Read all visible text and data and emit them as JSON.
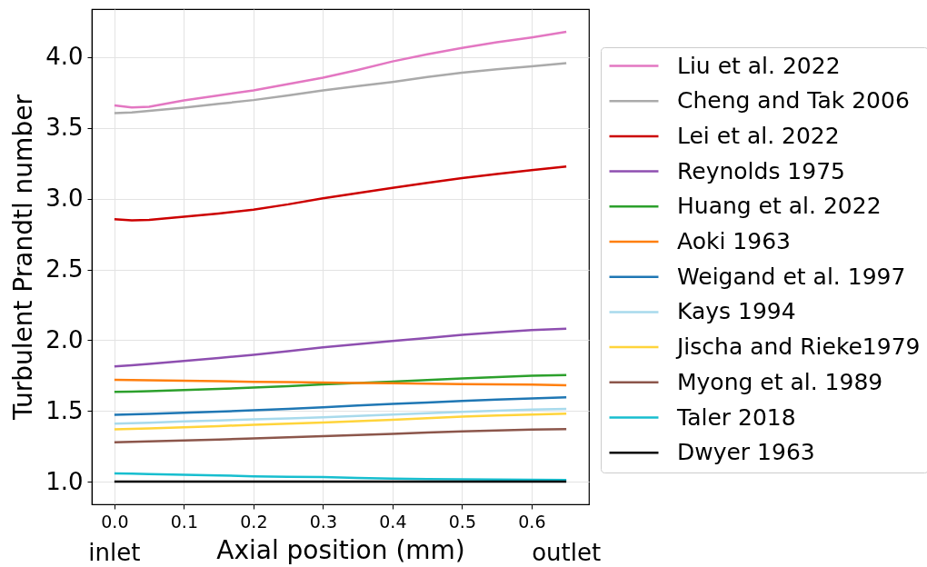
{
  "chart_data": {
    "type": "line",
    "xlabel": "Axial position (mm)",
    "ylabel": "Turbulent Prandtl number",
    "x": [
      0,
      0.025,
      0.05,
      0.1,
      0.15,
      0.2,
      0.25,
      0.3,
      0.35,
      0.4,
      0.45,
      0.5,
      0.55,
      0.6,
      0.65
    ],
    "series": [
      {
        "name": "Liu et al. 2022",
        "color": "#e377c2",
        "values": [
          3.66,
          3.645,
          3.65,
          3.695,
          3.73,
          3.765,
          3.81,
          3.855,
          3.91,
          3.97,
          4.02,
          4.065,
          4.105,
          4.14,
          4.18
        ]
      },
      {
        "name": "Cheng and Tak 2006",
        "color": "#aaaaaa",
        "values": [
          3.605,
          3.61,
          3.62,
          3.643,
          3.67,
          3.697,
          3.73,
          3.765,
          3.795,
          3.825,
          3.86,
          3.89,
          3.915,
          3.935,
          3.958
        ]
      },
      {
        "name": "Lei et al. 2022",
        "color": "#cc0000",
        "values": [
          2.855,
          2.847,
          2.85,
          2.872,
          2.895,
          2.923,
          2.96,
          3.003,
          3.04,
          3.077,
          3.112,
          3.146,
          3.175,
          3.201,
          3.227
        ]
      },
      {
        "name": "Reynolds 1975",
        "color": "#8e4fb0",
        "values": [
          1.814,
          1.823,
          1.832,
          1.853,
          1.874,
          1.897,
          1.922,
          1.949,
          1.972,
          1.994,
          2.016,
          2.037,
          2.055,
          2.071,
          2.081
        ]
      },
      {
        "name": "Huang et al. 2022",
        "color": "#2ca02c",
        "values": [
          1.635,
          1.637,
          1.64,
          1.647,
          1.655,
          1.665,
          1.675,
          1.687,
          1.697,
          1.707,
          1.718,
          1.729,
          1.739,
          1.748,
          1.753
        ]
      },
      {
        "name": "Aoki 1963",
        "color": "#ff7f0e",
        "values": [
          1.72,
          1.719,
          1.717,
          1.714,
          1.71,
          1.706,
          1.703,
          1.7,
          1.698,
          1.696,
          1.693,
          1.69,
          1.688,
          1.686,
          1.682
        ]
      },
      {
        "name": "Weigand et al. 1997",
        "color": "#1f77b4",
        "values": [
          1.472,
          1.475,
          1.479,
          1.487,
          1.495,
          1.505,
          1.515,
          1.526,
          1.538,
          1.549,
          1.56,
          1.571,
          1.58,
          1.588,
          1.596
        ]
      },
      {
        "name": "Kays 1994",
        "color": "#a8daec",
        "values": [
          1.41,
          1.413,
          1.417,
          1.426,
          1.433,
          1.44,
          1.447,
          1.455,
          1.465,
          1.474,
          1.484,
          1.494,
          1.502,
          1.509,
          1.515
        ]
      },
      {
        "name": "Jischa and Rieke1979",
        "color": "#ffd43b",
        "values": [
          1.37,
          1.373,
          1.377,
          1.385,
          1.393,
          1.402,
          1.41,
          1.418,
          1.428,
          1.438,
          1.449,
          1.46,
          1.468,
          1.474,
          1.481
        ]
      },
      {
        "name": "Myong et al. 1989",
        "color": "#8c564b",
        "values": [
          1.278,
          1.281,
          1.284,
          1.291,
          1.298,
          1.306,
          1.313,
          1.321,
          1.33,
          1.338,
          1.347,
          1.355,
          1.362,
          1.368,
          1.372
        ]
      },
      {
        "name": "Taler 2018",
        "color": "#17becf",
        "values": [
          1.058,
          1.056,
          1.054,
          1.049,
          1.044,
          1.038,
          1.035,
          1.032,
          1.027,
          1.022,
          1.019,
          1.017,
          1.015,
          1.013,
          1.011
        ]
      },
      {
        "name": "Dwyer 1963",
        "color": "#000000",
        "values": [
          1,
          1,
          1,
          1,
          1,
          1,
          1,
          1,
          1,
          1,
          1,
          1,
          1,
          1,
          1
        ]
      }
    ],
    "xlim": [
      -0.0325,
      0.6825
    ],
    "ylim": [
      0.84,
      4.34
    ],
    "xticks": [
      {
        "value": 0,
        "label": "0.0"
      },
      0.1,
      0.2,
      0.3,
      0.4,
      0.5,
      0.6
    ],
    "yticks": [
      {
        "value": 1,
        "label": "1.0"
      },
      1.5,
      {
        "value": 2,
        "label": "2.0"
      },
      2.5,
      {
        "value": 3,
        "label": "3.0"
      },
      3.5,
      {
        "value": 4,
        "label": "4.0"
      }
    ],
    "grid": true,
    "legend": "right",
    "line_style": "solid",
    "annotations": [
      "inlet",
      "outlet"
    ]
  }
}
